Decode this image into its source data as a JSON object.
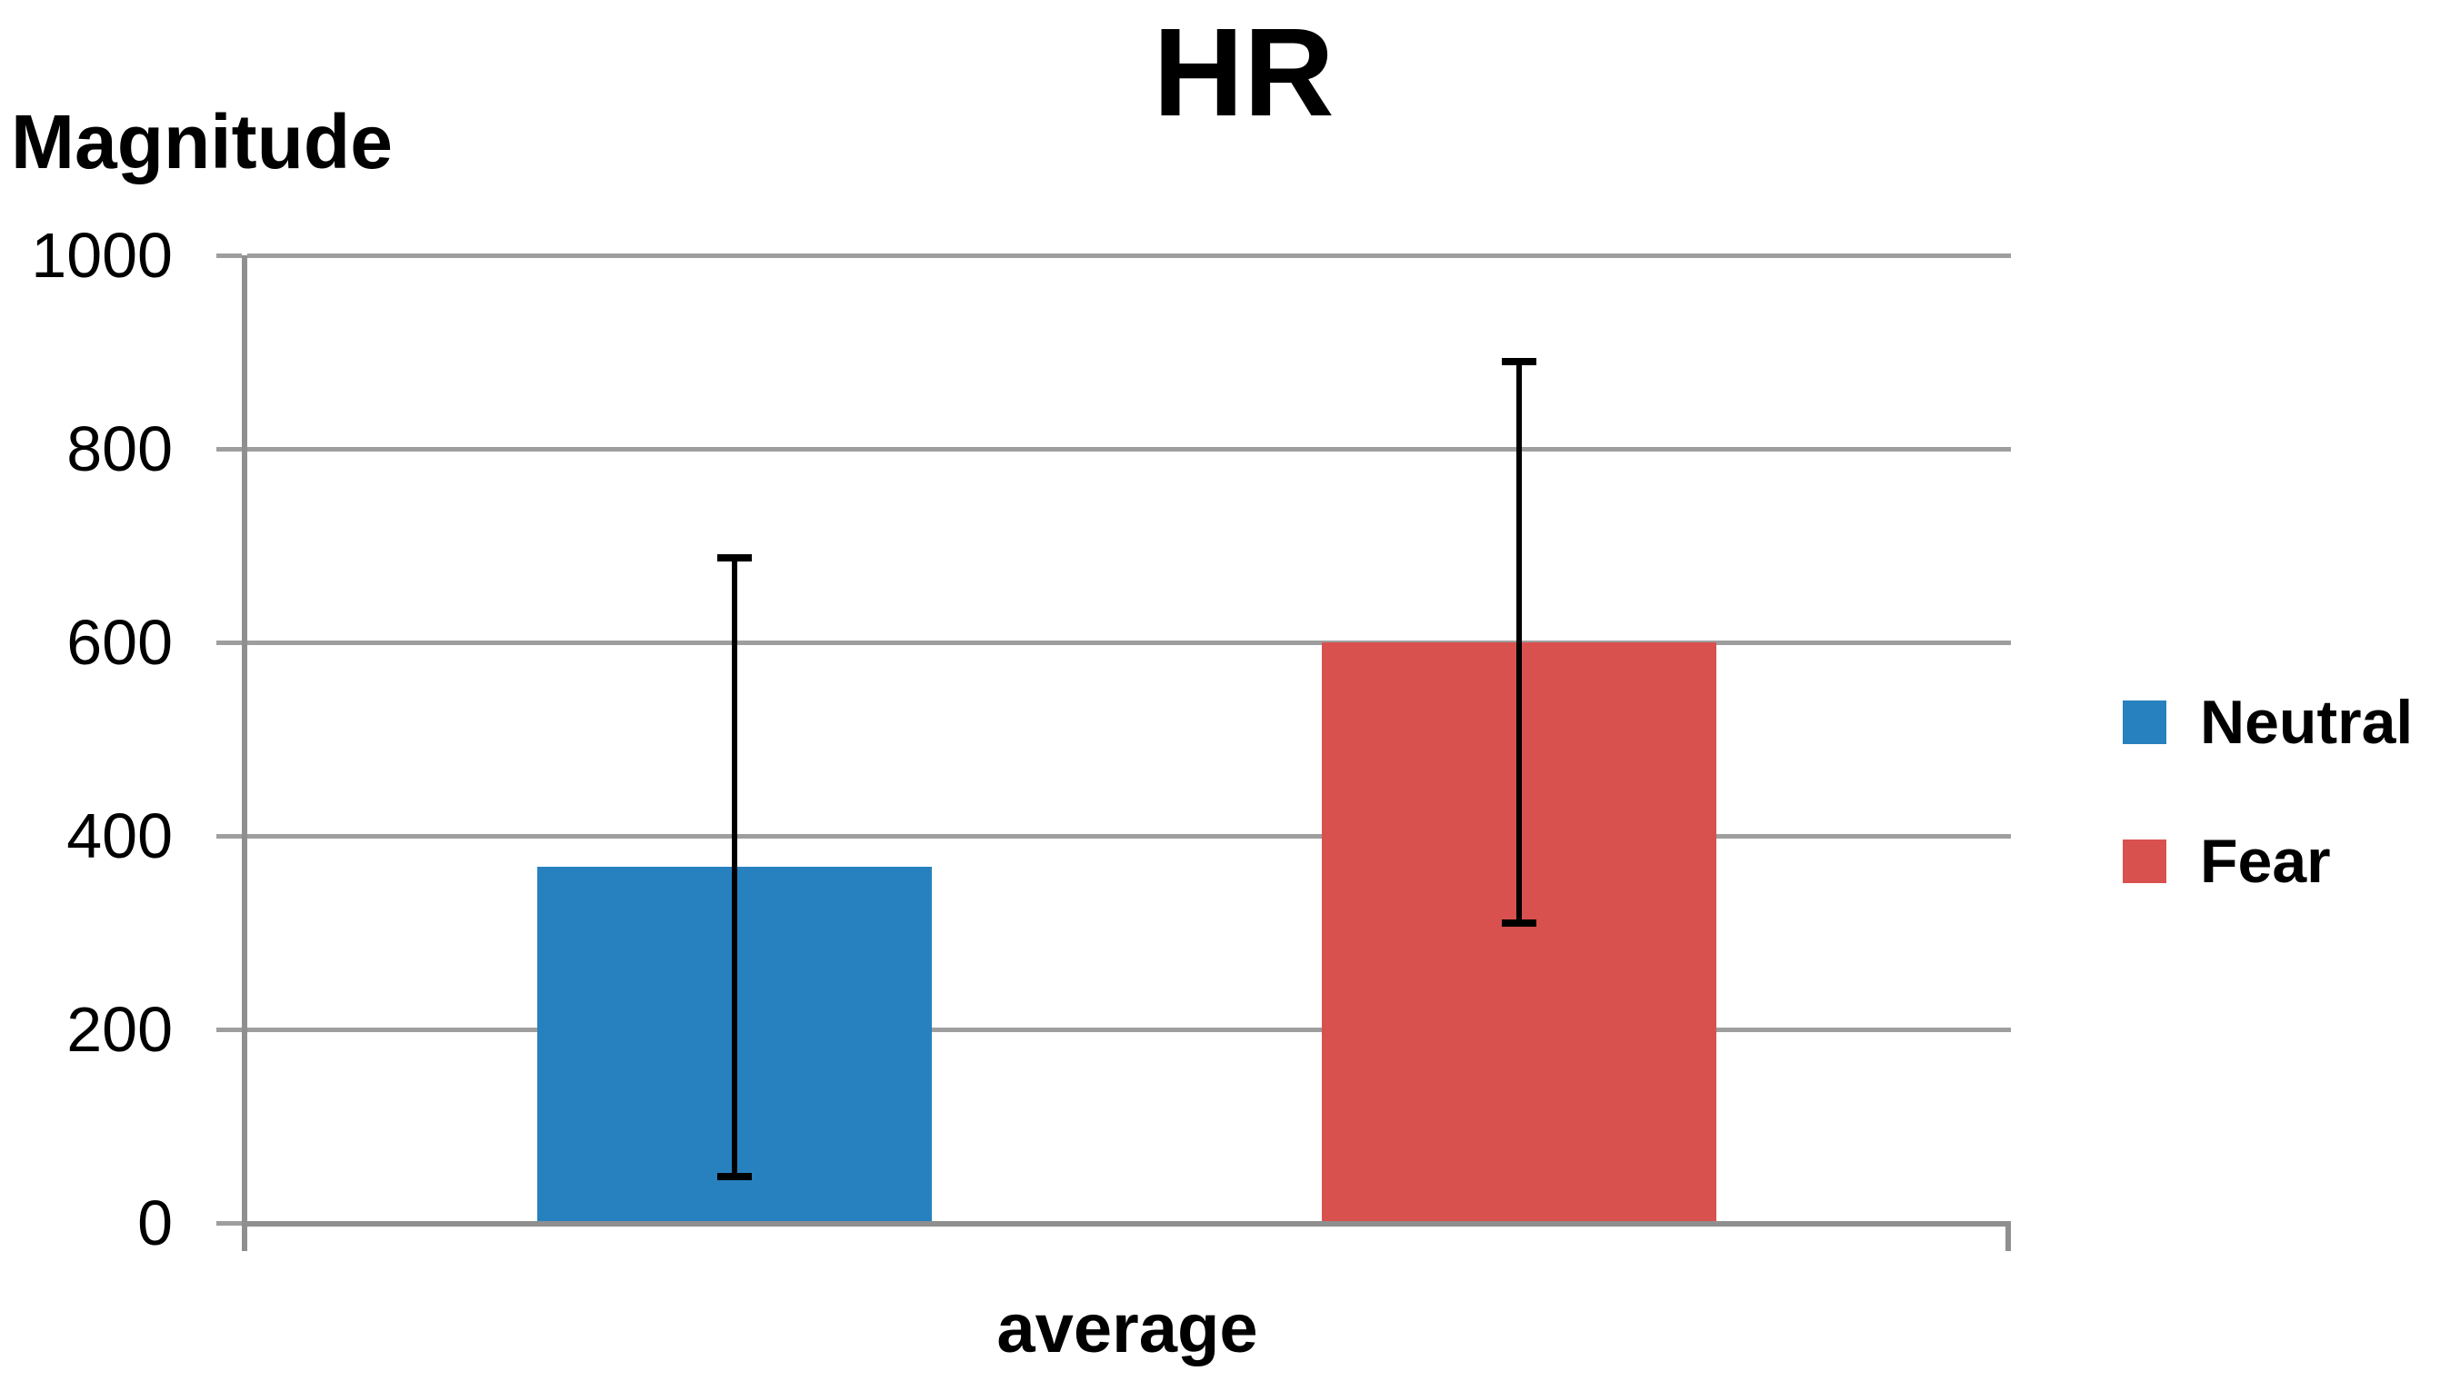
{
  "title": "HR",
  "y_axis_label": "Magnitude",
  "x_axis_label": "average",
  "legend": {
    "position": "right",
    "items": [
      "Neutral",
      "Fear"
    ]
  },
  "colors": {
    "neutral_series": "#2781be",
    "fear_series": "#d8514e",
    "gridline": "#9e9e9e",
    "axis": "#8f8f8f",
    "error_bar": "#000000",
    "text": "#000000",
    "background": "#ffffff"
  },
  "chart_data": {
    "type": "bar",
    "title": "HR",
    "xlabel": "average",
    "ylabel": "Magnitude",
    "categories": [
      "average"
    ],
    "series": [
      {
        "name": "Neutral",
        "values": [
          368
        ],
        "error_low": [
          48
        ],
        "error_high": [
          687
        ],
        "color": "#2781be"
      },
      {
        "name": "Fear",
        "values": [
          600
        ],
        "error_low": [
          310
        ],
        "error_high": [
          890
        ],
        "color": "#d8514e"
      }
    ],
    "ylim": [
      0,
      1000
    ],
    "yticks": [
      0,
      200,
      400,
      600,
      800,
      1000
    ],
    "grid": true,
    "error_bars": true,
    "legend_position": "right"
  }
}
